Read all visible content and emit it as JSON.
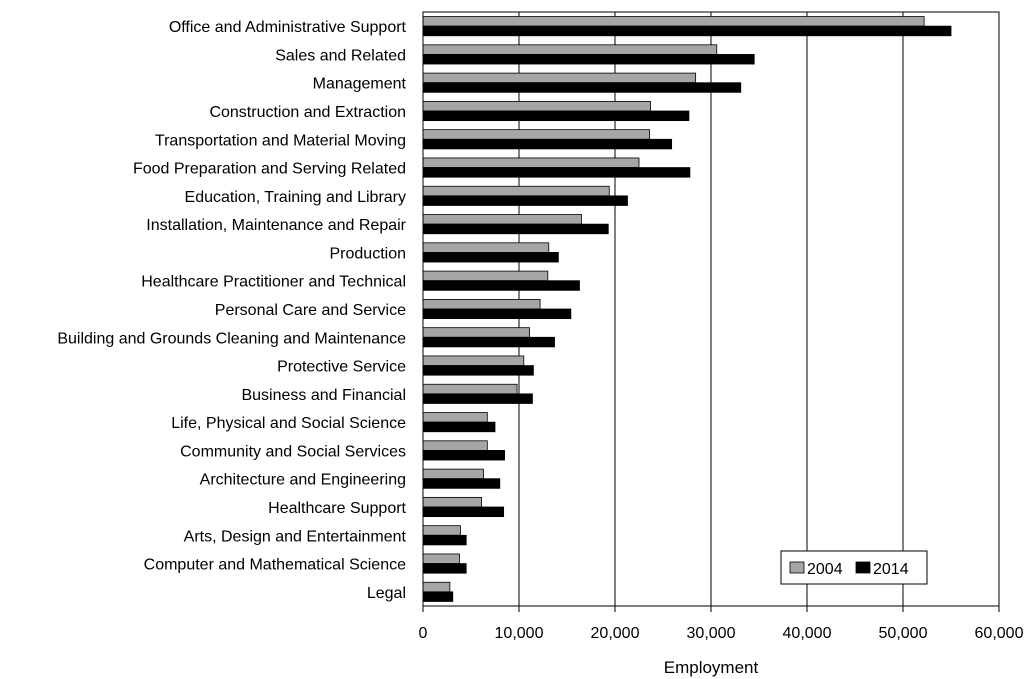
{
  "chart_data": {
    "type": "bar",
    "orientation": "horizontal",
    "categories": [
      "Office and Administrative Support",
      "Sales and Related",
      "Management",
      "Construction and Extraction",
      "Transportation and Material Moving",
      "Food Preparation and Serving Related",
      "Education, Training and Library",
      "Installation, Maintenance and Repair",
      "Production",
      "Healthcare Practitioner and Technical",
      "Personal Care and Service",
      "Building and Grounds Cleaning and Maintenance",
      "Protective Service",
      "Business and Financial",
      "Life, Physical and Social Science",
      "Community and Social Services",
      "Architecture and Engineering",
      "Healthcare Support",
      "Arts, Design and Entertainment",
      "Computer and Mathematical Science",
      "Legal"
    ],
    "series": [
      {
        "name": "2004",
        "color": "#a6a6a6",
        "values": [
          52200,
          30600,
          28400,
          23700,
          23600,
          22500,
          19400,
          16500,
          13100,
          13000,
          12200,
          11100,
          10500,
          9800,
          6700,
          6700,
          6300,
          6100,
          3900,
          3800,
          2800
        ]
      },
      {
        "name": "2014",
        "color": "#000000",
        "values": [
          55000,
          34500,
          33100,
          27700,
          25900,
          27800,
          21300,
          19300,
          14100,
          16300,
          15400,
          13700,
          11500,
          11400,
          7500,
          8500,
          8000,
          8400,
          4500,
          4500,
          3100
        ]
      }
    ],
    "title": "",
    "xlabel": "Employment",
    "ylabel": "",
    "xlim": [
      0,
      60000
    ],
    "xticks": [
      0,
      10000,
      20000,
      30000,
      40000,
      50000,
      60000
    ],
    "xtick_labels": [
      "0",
      "10,000",
      "20,000",
      "30,000",
      "40,000",
      "50,000",
      "60,000"
    ],
    "grid": "vertical",
    "legend_position": "bottom-right"
  }
}
